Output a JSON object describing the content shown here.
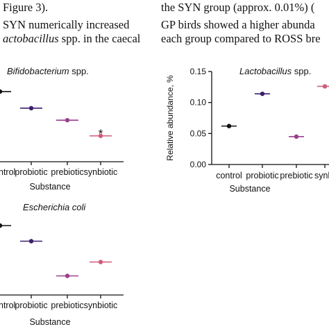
{
  "text": {
    "left_line1": "Figure 3).",
    "left_line2": "SYN numerically increased",
    "left_line3_italic": "actobacillus",
    "left_line3_rest": " spp. in the caecal",
    "right_line1": "the SYN group (approx. 0.01%) (",
    "right_line2": "GP birds showed a higher abunda",
    "right_line3": "each group compared to ROSS bre"
  },
  "colors": {
    "control": "#111111",
    "probiotic": "#3b1f6b",
    "prebiotic": "#9b3f8e",
    "synbiotic": "#d05b7a"
  },
  "chart_data": [
    {
      "type": "scatter",
      "title_italic": "Bifidobacterium",
      "title_rest": " spp.",
      "categories": [
        "control",
        "probiotic",
        "prebiotic",
        "synbiotic"
      ],
      "visible_category_labels": [
        "ntrol",
        "probiotic",
        "prebiotic",
        "synbiotic"
      ],
      "values": [
        0.76,
        0.58,
        0.45,
        0.28
      ],
      "ylim": [
        0,
        1
      ],
      "xlabel": "Substance",
      "ylabel": "",
      "annotation": "*"
    },
    {
      "type": "scatter",
      "title_italic": "Lactobacillus",
      "title_rest": " spp.",
      "categories": [
        "control",
        "probiotic",
        "prebiotic",
        "synbiotic"
      ],
      "visible_category_labels": [
        "control",
        "probiotic",
        "prebiotic",
        "synbi"
      ],
      "values": [
        0.062,
        0.114,
        0.045,
        0.126
      ],
      "yticks": [
        "0.00",
        "0.05",
        "0.10",
        "0.15"
      ],
      "ylim": [
        0,
        0.15
      ],
      "xlabel": "Substance",
      "ylabel": "Relative abundance, %"
    },
    {
      "type": "scatter",
      "title_italic": "Escherichia coli",
      "title_rest": "",
      "categories": [
        "control",
        "probiotic",
        "prebiotic",
        "synbiotic"
      ],
      "visible_category_labels": [
        "ntrol",
        "probiotic",
        "prebiotic",
        "synbiotic"
      ],
      "values": [
        0.8,
        0.62,
        0.22,
        0.38
      ],
      "ylim": [
        0,
        1
      ],
      "xlabel": "Substance",
      "ylabel": ""
    }
  ]
}
